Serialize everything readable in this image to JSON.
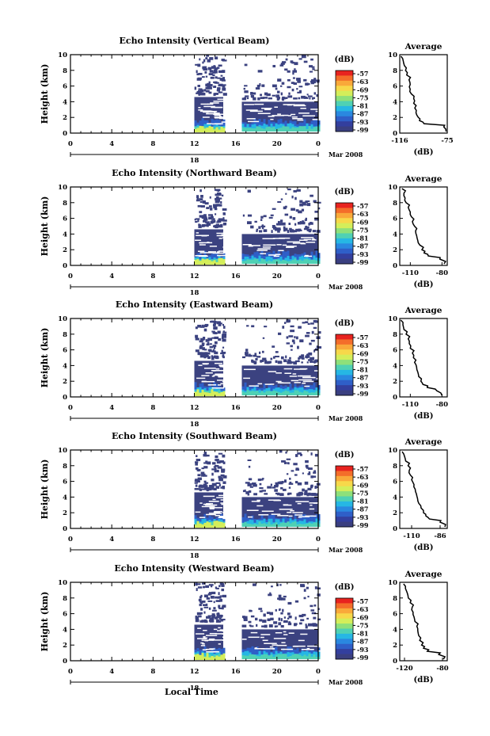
{
  "figure": {
    "date_label": "Mar 2008",
    "xlabel_bottom": "Local Time",
    "colorbar_unit": "(dB)",
    "colorbar_ticks": [
      "-57",
      "-63",
      "-69",
      "-75",
      "-81",
      "-87",
      "-93",
      "-99"
    ],
    "colorbar_colors": [
      "#e8231f",
      "#f46d2a",
      "#f9a93a",
      "#f7d84a",
      "#d4ee5a",
      "#8ee07a",
      "#4fd1b4",
      "#26b7e4",
      "#2a88e0",
      "#2f5fc8",
      "#333f9e",
      "#3a3f80"
    ],
    "background_echo_color": "#3b4280"
  },
  "chart_data": [
    {
      "type": "heatmap",
      "title": "Echo Intensity (Vertical Beam)",
      "ylabel": "Height (km)",
      "x_ticks": [
        "0",
        "4",
        "8",
        "12",
        "16",
        "20",
        "0"
      ],
      "x_day_label": "18",
      "xlim": [
        0,
        24
      ],
      "ylim": [
        0,
        10
      ],
      "y_ticks": [
        "0",
        "2",
        "4",
        "6",
        "8",
        "10"
      ],
      "data_segments_hours": [
        [
          12,
          14.8
        ],
        [
          16.6,
          24
        ]
      ],
      "profile": {
        "title": "Average",
        "xlabel": "(dB)",
        "x_ticks": [
          "-116",
          "-75"
        ],
        "xlim": [
          -116,
          -75
        ],
        "height": [
          0.2,
          0.8,
          1.2,
          1.6,
          2.0,
          2.6,
          3.2,
          3.8,
          4.4,
          5.0,
          5.6,
          6.2,
          6.8,
          7.4,
          8.0,
          8.6,
          9.2,
          9.8
        ],
        "value": [
          -76,
          -78,
          -95,
          -99,
          -100,
          -102,
          -103,
          -104,
          -104,
          -106,
          -107,
          -107,
          -108,
          -110,
          -111,
          -112,
          -113,
          -115
        ]
      }
    },
    {
      "type": "heatmap",
      "title": "Echo Intensity (Northward Beam)",
      "ylabel": "Height (km)",
      "x_ticks": [
        "0",
        "4",
        "8",
        "12",
        "16",
        "20",
        "0"
      ],
      "x_day_label": "18",
      "xlim": [
        0,
        24
      ],
      "ylim": [
        0,
        10
      ],
      "y_ticks": [
        "0",
        "2",
        "4",
        "6",
        "8",
        "10"
      ],
      "data_segments_hours": [
        [
          12,
          14.8
        ],
        [
          16.6,
          24
        ]
      ],
      "profile": {
        "title": "Average",
        "xlabel": "(dB)",
        "x_ticks": [
          "-110",
          "-80"
        ],
        "xlim": [
          -120,
          -75
        ],
        "height": [
          0.2,
          0.8,
          1.2,
          1.6,
          2.0,
          2.6,
          3.2,
          3.8,
          4.4,
          5.0,
          5.6,
          6.2,
          6.8,
          7.4,
          8.0,
          8.6,
          9.2,
          9.8
        ],
        "value": [
          -78,
          -82,
          -93,
          -97,
          -99,
          -101,
          -103,
          -104,
          -105,
          -106,
          -108,
          -109,
          -110,
          -112,
          -114,
          -115,
          -116,
          -118
        ]
      }
    },
    {
      "type": "heatmap",
      "title": "Echo Intensity (Eastward Beam)",
      "ylabel": "Height (km)",
      "x_ticks": [
        "0",
        "4",
        "8",
        "12",
        "16",
        "20",
        "0"
      ],
      "x_day_label": "18",
      "xlim": [
        0,
        24
      ],
      "ylim": [
        0,
        10
      ],
      "y_ticks": [
        "0",
        "2",
        "4",
        "6",
        "8",
        "10"
      ],
      "data_segments_hours": [
        [
          12,
          14.8
        ],
        [
          16.6,
          24
        ]
      ],
      "profile": {
        "title": "Average",
        "xlabel": "(dB)",
        "x_ticks": [
          "-110",
          "-80"
        ],
        "xlim": [
          -120,
          -75
        ],
        "height": [
          0.2,
          0.8,
          1.2,
          1.6,
          2.0,
          2.6,
          3.2,
          3.8,
          4.4,
          5.0,
          5.6,
          6.2,
          6.8,
          7.4,
          8.0,
          8.6,
          9.2,
          9.8
        ],
        "value": [
          -80,
          -85,
          -94,
          -98,
          -100,
          -102,
          -103,
          -104,
          -106,
          -107,
          -108,
          -110,
          -111,
          -112,
          -114,
          -116,
          -117,
          -119
        ]
      }
    },
    {
      "type": "heatmap",
      "title": "Echo Intensity (Southward Beam)",
      "ylabel": "Height (km)",
      "x_ticks": [
        "0",
        "4",
        "8",
        "12",
        "16",
        "20",
        "0"
      ],
      "x_day_label": "18",
      "xlim": [
        0,
        24
      ],
      "ylim": [
        0,
        10
      ],
      "y_ticks": [
        "0",
        "2",
        "4",
        "6",
        "8",
        "10"
      ],
      "data_segments_hours": [
        [
          12,
          14.8
        ],
        [
          16.6,
          24
        ]
      ],
      "profile": {
        "title": "Average",
        "xlabel": "(dB)",
        "x_ticks": [
          "-110",
          "-86"
        ],
        "xlim": [
          -120,
          -80
        ],
        "height": [
          0.2,
          0.8,
          1.2,
          1.6,
          2.0,
          2.6,
          3.2,
          3.8,
          4.4,
          5.0,
          5.6,
          6.2,
          6.8,
          7.4,
          8.0,
          8.6,
          9.2,
          9.8
        ],
        "value": [
          -82,
          -86,
          -95,
          -98,
          -100,
          -102,
          -104,
          -105,
          -106,
          -107,
          -108,
          -110,
          -111,
          -112,
          -113,
          -115,
          -116,
          -118
        ]
      }
    },
    {
      "type": "heatmap",
      "title": "Echo Intensity (Westward Beam)",
      "ylabel": "Height (km)",
      "x_ticks": [
        "0",
        "4",
        "8",
        "12",
        "16",
        "20",
        "0"
      ],
      "x_day_label": "18",
      "xlim": [
        0,
        24
      ],
      "ylim": [
        0,
        10
      ],
      "y_ticks": [
        "0",
        "2",
        "4",
        "6",
        "8",
        "10"
      ],
      "data_segments_hours": [
        [
          12,
          14.8
        ],
        [
          16.6,
          24
        ]
      ],
      "profile": {
        "title": "Average",
        "xlabel": "(dB)",
        "x_ticks": [
          "-120",
          "-80"
        ],
        "xlim": [
          -125,
          -75
        ],
        "height": [
          0.2,
          0.8,
          1.2,
          1.6,
          2.0,
          2.6,
          3.2,
          3.8,
          4.4,
          5.0,
          5.6,
          6.2,
          6.8,
          7.4,
          8.0,
          8.6,
          9.2,
          9.8
        ],
        "value": [
          -79,
          -84,
          -96,
          -100,
          -102,
          -104,
          -105,
          -106,
          -107,
          -109,
          -110,
          -111,
          -112,
          -114,
          -116,
          -117,
          -119,
          -121
        ]
      }
    }
  ]
}
